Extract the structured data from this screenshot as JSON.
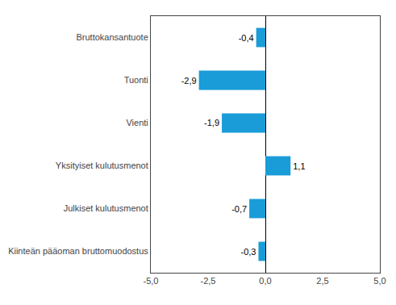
{
  "chart_data": {
    "type": "bar",
    "orientation": "horizontal",
    "categories": [
      "Bruttokansantuote",
      "Tuonti",
      "Vienti",
      "Yksityiset kulutusmenot",
      "Julkiset kulutusmenot",
      "Kiinteän pääoman bruttomuodostus"
    ],
    "values": [
      -0.4,
      -2.9,
      -1.9,
      1.1,
      -0.7,
      -0.3
    ],
    "value_labels": [
      "-0,4",
      "-2,9",
      "-1,9",
      "1,1",
      "-0,7",
      "-0,3"
    ],
    "data_labels": true,
    "color": "#1a9cd8",
    "xlim": [
      -5.0,
      5.0
    ],
    "xticks": [
      {
        "value": -5.0,
        "label": "-5,0"
      },
      {
        "value": -2.5,
        "label": "-2,5"
      },
      {
        "value": 0.0,
        "label": "0,0"
      },
      {
        "value": 2.5,
        "label": "2,5"
      },
      {
        "value": 5.0,
        "label": "5,0"
      }
    ],
    "grid": false
  }
}
